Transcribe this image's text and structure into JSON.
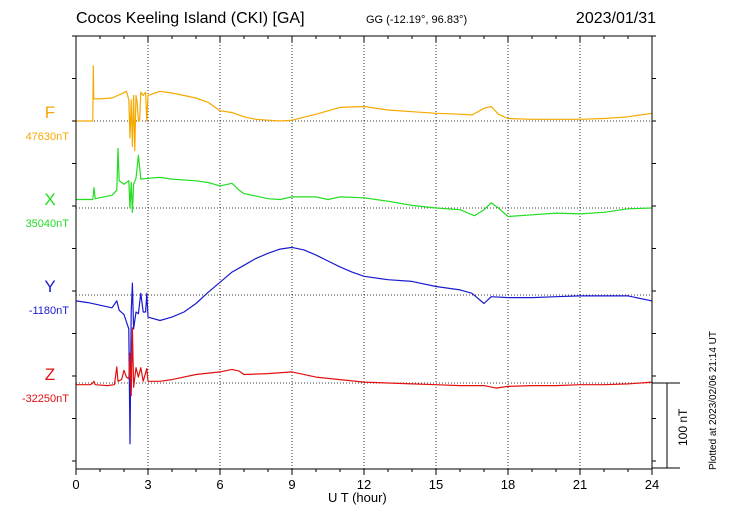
{
  "header": {
    "station": "Cocos Keeling Island (CKI)  [GA]",
    "coords": "GG (-12.19°,  96.83°)",
    "date": "2023/01/31"
  },
  "footer": {
    "plotted_at": "Plotted at 2023/02/06 21:14 UT"
  },
  "chart_data": {
    "type": "line",
    "title": "Cocos Keeling Island (CKI)  [GA]",
    "xlabel": "U T (hour)",
    "xlim": [
      0,
      24
    ],
    "x_ticks": [
      0,
      3,
      6,
      9,
      12,
      15,
      18,
      21,
      24
    ],
    "x_tick_labels": [
      "0",
      "3",
      "6",
      "9",
      "12",
      "15",
      "18",
      "21",
      "24"
    ],
    "scale_bar": "100 nT",
    "grid": true,
    "series": [
      {
        "name": "F",
        "baseline_label": "47630nT",
        "baseline_value": 47630,
        "color": "#f5a900",
        "points": [
          [
            0,
            47630
          ],
          [
            0.7,
            47630
          ],
          [
            0.72,
            47695
          ],
          [
            0.74,
            47656
          ],
          [
            1.0,
            47656
          ],
          [
            1.5,
            47657
          ],
          [
            1.9,
            47662
          ],
          [
            2.1,
            47665
          ],
          [
            2.2,
            47655
          ],
          [
            2.25,
            47610
          ],
          [
            2.3,
            47655
          ],
          [
            2.35,
            47600
          ],
          [
            2.4,
            47660
          ],
          [
            2.45,
            47595
          ],
          [
            2.5,
            47660
          ],
          [
            2.55,
            47652
          ],
          [
            2.6,
            47630
          ],
          [
            2.65,
            47630
          ],
          [
            2.7,
            47664
          ],
          [
            2.8,
            47660
          ],
          [
            2.9,
            47664
          ],
          [
            2.95,
            47630
          ],
          [
            3.0,
            47660
          ],
          [
            3.5,
            47665
          ],
          [
            4.0,
            47663
          ],
          [
            4.5,
            47660
          ],
          [
            5.0,
            47657
          ],
          [
            5.5,
            47652
          ],
          [
            6.0,
            47642
          ],
          [
            6.5,
            47640
          ],
          [
            7.0,
            47635
          ],
          [
            7.5,
            47632
          ],
          [
            8.0,
            47631
          ],
          [
            8.5,
            47630
          ],
          [
            9.0,
            47631
          ],
          [
            10.0,
            47638
          ],
          [
            11.0,
            47646
          ],
          [
            12.0,
            47647
          ],
          [
            13.0,
            47643
          ],
          [
            14.0,
            47641
          ],
          [
            15.0,
            47639
          ],
          [
            16.0,
            47638
          ],
          [
            16.5,
            47637
          ],
          [
            17.0,
            47645
          ],
          [
            17.3,
            47647
          ],
          [
            17.6,
            47638
          ],
          [
            18.0,
            47633
          ],
          [
            19.0,
            47632
          ],
          [
            20.0,
            47632
          ],
          [
            21.0,
            47632
          ],
          [
            22.0,
            47633
          ],
          [
            23.0,
            47635
          ],
          [
            24.0,
            47639
          ]
        ]
      },
      {
        "name": "X",
        "baseline_label": "35040nT",
        "baseline_value": 35040,
        "color": "#22dd22",
        "points": [
          [
            0,
            35050
          ],
          [
            0.7,
            35050
          ],
          [
            0.75,
            35064
          ],
          [
            0.8,
            35051
          ],
          [
            1.5,
            35055
          ],
          [
            1.7,
            35061
          ],
          [
            1.75,
            35110
          ],
          [
            1.8,
            35072
          ],
          [
            2.0,
            35068
          ],
          [
            2.2,
            35072
          ],
          [
            2.25,
            35040
          ],
          [
            2.3,
            35070
          ],
          [
            2.35,
            35035
          ],
          [
            2.4,
            35068
          ],
          [
            2.5,
            35075
          ],
          [
            2.6,
            35102
          ],
          [
            2.7,
            35074
          ],
          [
            3.0,
            35075
          ],
          [
            3.5,
            35076
          ],
          [
            4.0,
            35074
          ],
          [
            5.0,
            35072
          ],
          [
            5.5,
            35070
          ],
          [
            6.0,
            35066
          ],
          [
            6.5,
            35069
          ],
          [
            6.8,
            35061
          ],
          [
            7.0,
            35057
          ],
          [
            7.5,
            35054
          ],
          [
            8.0,
            35051
          ],
          [
            8.5,
            35050
          ],
          [
            9.0,
            35053
          ],
          [
            10.0,
            35053
          ],
          [
            10.5,
            35050
          ],
          [
            11.0,
            35053
          ],
          [
            12.0,
            35052
          ],
          [
            13.0,
            35048
          ],
          [
            14.0,
            35043
          ],
          [
            15.0,
            35040
          ],
          [
            16.0,
            35038
          ],
          [
            16.6,
            35031
          ],
          [
            17.0,
            35038
          ],
          [
            17.3,
            35046
          ],
          [
            17.6,
            35040
          ],
          [
            18.0,
            35030
          ],
          [
            19.0,
            35032
          ],
          [
            20.0,
            35034
          ],
          [
            21.0,
            35033
          ],
          [
            22.0,
            35035
          ],
          [
            23.0,
            35039
          ],
          [
            24.0,
            35040
          ]
        ]
      },
      {
        "name": "Y",
        "baseline_label": "-1180nT",
        "baseline_value": -1180,
        "color": "#1a1ad0",
        "points": [
          [
            0,
            -1187
          ],
          [
            0.5,
            -1189
          ],
          [
            1.0,
            -1192
          ],
          [
            1.5,
            -1195
          ],
          [
            1.7,
            -1187
          ],
          [
            1.8,
            -1198
          ],
          [
            2.0,
            -1203
          ],
          [
            2.2,
            -1220
          ],
          [
            2.25,
            -1355
          ],
          [
            2.3,
            -1200
          ],
          [
            2.35,
            -1166
          ],
          [
            2.4,
            -1220
          ],
          [
            2.5,
            -1200
          ],
          [
            2.6,
            -1202
          ],
          [
            2.7,
            -1178
          ],
          [
            2.8,
            -1200
          ],
          [
            2.9,
            -1200
          ],
          [
            2.95,
            -1178
          ],
          [
            3.0,
            -1206
          ],
          [
            3.5,
            -1210
          ],
          [
            4.0,
            -1206
          ],
          [
            4.5,
            -1200
          ],
          [
            5.0,
            -1190
          ],
          [
            5.5,
            -1177
          ],
          [
            6.0,
            -1165
          ],
          [
            6.5,
            -1153
          ],
          [
            7.0,
            -1145
          ],
          [
            7.5,
            -1137
          ],
          [
            8.0,
            -1131
          ],
          [
            8.5,
            -1126
          ],
          [
            9.0,
            -1124
          ],
          [
            9.5,
            -1127
          ],
          [
            10.0,
            -1133
          ],
          [
            10.5,
            -1140
          ],
          [
            11.0,
            -1147
          ],
          [
            11.5,
            -1153
          ],
          [
            12.0,
            -1158
          ],
          [
            13.0,
            -1162
          ],
          [
            14.0,
            -1164
          ],
          [
            15.0,
            -1170
          ],
          [
            16.0,
            -1174
          ],
          [
            16.5,
            -1178
          ],
          [
            17.0,
            -1190
          ],
          [
            17.3,
            -1182
          ],
          [
            18.0,
            -1183
          ],
          [
            19.0,
            -1183
          ],
          [
            20.0,
            -1182
          ],
          [
            21.0,
            -1181
          ],
          [
            22.0,
            -1181
          ],
          [
            23.0,
            -1181
          ],
          [
            24.0,
            -1187
          ]
        ]
      },
      {
        "name": "Z",
        "baseline_label": "-32250nT",
        "baseline_value": -32250,
        "color": "#e21010",
        "points": [
          [
            0,
            -32252
          ],
          [
            0.6,
            -32252
          ],
          [
            0.7,
            -32250
          ],
          [
            0.75,
            -32248
          ],
          [
            0.8,
            -32252
          ],
          [
            1.3,
            -32253
          ],
          [
            1.6,
            -32252
          ],
          [
            1.7,
            -32231
          ],
          [
            1.75,
            -32248
          ],
          [
            1.9,
            -32246
          ],
          [
            2.0,
            -32235
          ],
          [
            2.1,
            -32243
          ],
          [
            2.2,
            -32245
          ],
          [
            2.25,
            -32215
          ],
          [
            2.3,
            -32265
          ],
          [
            2.35,
            -32185
          ],
          [
            2.4,
            -32255
          ],
          [
            2.5,
            -32232
          ],
          [
            2.6,
            -32243
          ],
          [
            2.7,
            -32232
          ],
          [
            2.8,
            -32248
          ],
          [
            2.95,
            -32233
          ],
          [
            3.0,
            -32248
          ],
          [
            3.5,
            -32248
          ],
          [
            4.0,
            -32246
          ],
          [
            5.0,
            -32240
          ],
          [
            6.0,
            -32237
          ],
          [
            6.5,
            -32234
          ],
          [
            6.8,
            -32236
          ],
          [
            7.0,
            -32240
          ],
          [
            8.0,
            -32239
          ],
          [
            9.0,
            -32237
          ],
          [
            10.0,
            -32243
          ],
          [
            11.0,
            -32246
          ],
          [
            12.0,
            -32249
          ],
          [
            13.0,
            -32250
          ],
          [
            14.0,
            -32251
          ],
          [
            15.0,
            -32252
          ],
          [
            16.0,
            -32253
          ],
          [
            17.0,
            -32253
          ],
          [
            17.5,
            -32256
          ],
          [
            18.0,
            -32254
          ],
          [
            19.0,
            -32253
          ],
          [
            20.0,
            -32253
          ],
          [
            21.0,
            -32252
          ],
          [
            22.0,
            -32252
          ],
          [
            23.0,
            -32251
          ],
          [
            24.0,
            -32249
          ]
        ]
      }
    ]
  }
}
